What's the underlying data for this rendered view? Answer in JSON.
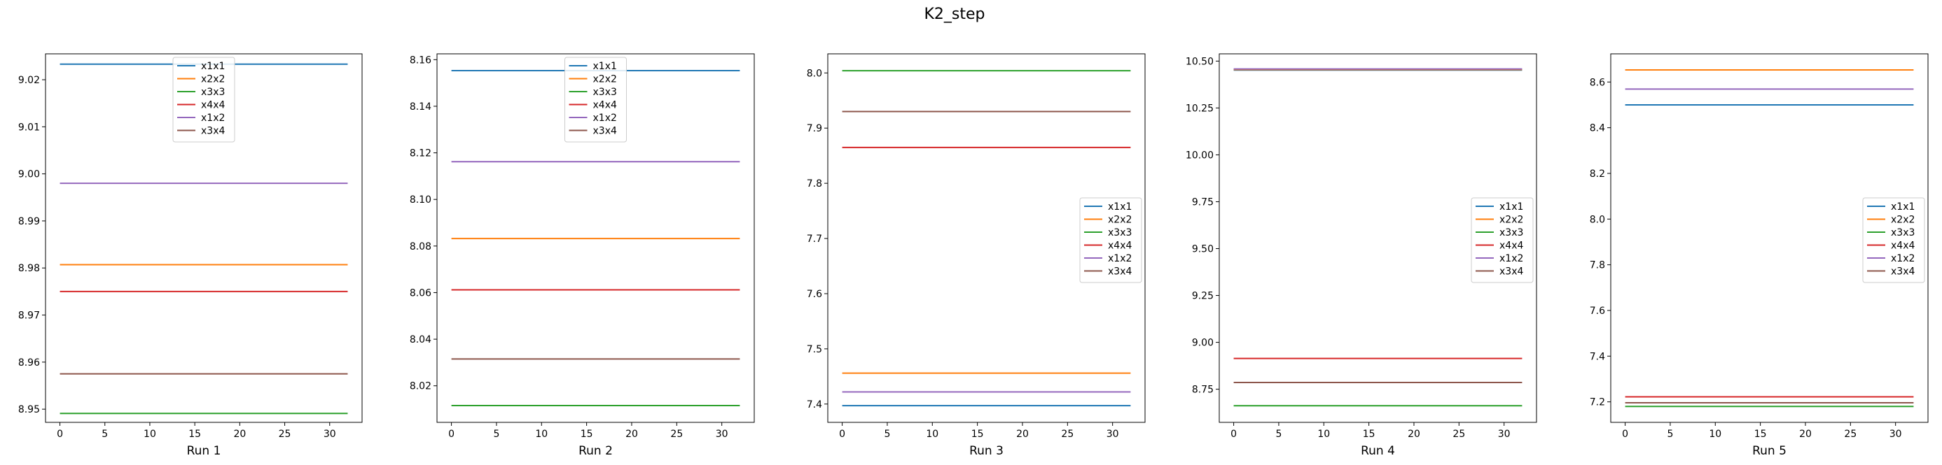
{
  "figure": {
    "suptitle": "K2_step"
  },
  "colors": {
    "x1x1": "#1f77b4",
    "x2x2": "#ff7f0e",
    "x3x3": "#2ca02c",
    "x4x4": "#d62728",
    "x1x2": "#9467bd",
    "x3x4": "#8c564b"
  },
  "chart_data": [
    {
      "type": "line",
      "xlabel": "Run 1",
      "legend": "upper center",
      "x": [
        0,
        32
      ],
      "xlim": [
        -1.6,
        33.6
      ],
      "ylim": [
        8.9472,
        9.0255
      ],
      "xticks": [
        0,
        5,
        10,
        15,
        20,
        25,
        30
      ],
      "yticks": [
        8.95,
        8.96,
        8.97,
        8.98,
        8.99,
        9.0,
        9.01,
        9.02
      ],
      "yfmt": 2,
      "series": [
        {
          "name": "x1x1",
          "value": 9.0233
        },
        {
          "name": "x2x2",
          "value": 8.9807
        },
        {
          "name": "x3x3",
          "value": 8.9491
        },
        {
          "name": "x4x4",
          "value": 8.975
        },
        {
          "name": "x1x2",
          "value": 8.998
        },
        {
          "name": "x3x4",
          "value": 8.9575
        }
      ]
    },
    {
      "type": "line",
      "xlabel": "Run 2",
      "legend": "upper center",
      "x": [
        0,
        32
      ],
      "xlim": [
        -1.6,
        33.6
      ],
      "ylim": [
        8.0043,
        8.1625
      ],
      "xticks": [
        0,
        5,
        10,
        15,
        20,
        25,
        30
      ],
      "yticks": [
        8.02,
        8.04,
        8.06,
        8.08,
        8.1,
        8.12,
        8.14,
        8.16
      ],
      "yfmt": 2,
      "series": [
        {
          "name": "x1x1",
          "value": 8.1553
        },
        {
          "name": "x2x2",
          "value": 8.0832
        },
        {
          "name": "x3x3",
          "value": 8.0115
        },
        {
          "name": "x4x4",
          "value": 8.0612
        },
        {
          "name": "x1x2",
          "value": 8.1162
        },
        {
          "name": "x3x4",
          "value": 8.0315
        }
      ]
    },
    {
      "type": "line",
      "xlabel": "Run 3",
      "legend": "center right",
      "x": [
        0,
        32
      ],
      "xlim": [
        -1.6,
        33.6
      ],
      "ylim": [
        7.3668,
        8.0346
      ],
      "xticks": [
        0,
        5,
        10,
        15,
        20,
        25,
        30
      ],
      "yticks": [
        7.4,
        7.5,
        7.6,
        7.7,
        7.8,
        7.9,
        8.0
      ],
      "yfmt": 1,
      "series": [
        {
          "name": "x1x1",
          "value": 7.397
        },
        {
          "name": "x2x2",
          "value": 7.456
        },
        {
          "name": "x3x3",
          "value": 8.004
        },
        {
          "name": "x4x4",
          "value": 7.865
        },
        {
          "name": "x1x2",
          "value": 7.422
        },
        {
          "name": "x3x4",
          "value": 7.93
        }
      ]
    },
    {
      "type": "line",
      "xlabel": "Run 4",
      "legend": "center right",
      "x": [
        0,
        32
      ],
      "xlim": [
        -1.6,
        33.6
      ],
      "ylim": [
        8.5733,
        10.5387
      ],
      "xticks": [
        0,
        5,
        10,
        15,
        20,
        25,
        30
      ],
      "yticks": [
        8.75,
        9.0,
        9.25,
        9.5,
        9.75,
        10.0,
        10.25,
        10.5
      ],
      "yfmt": 2,
      "series": [
        {
          "name": "x1x1",
          "value": 10.452
        },
        {
          "name": "x2x2",
          "value": 10.455
        },
        {
          "name": "x3x3",
          "value": 8.662
        },
        {
          "name": "x4x4",
          "value": 8.914
        },
        {
          "name": "x1x2",
          "value": 10.458
        },
        {
          "name": "x3x4",
          "value": 8.786
        }
      ]
    },
    {
      "type": "line",
      "xlabel": "Run 5",
      "legend": "center right",
      "x": [
        0,
        32
      ],
      "xlim": [
        -1.6,
        33.6
      ],
      "ylim": [
        7.1102,
        8.7233
      ],
      "xticks": [
        0,
        5,
        10,
        15,
        20,
        25,
        30
      ],
      "yticks": [
        7.2,
        7.4,
        7.6,
        7.8,
        8.0,
        8.2,
        8.4,
        8.6
      ],
      "yfmt": 1,
      "series": [
        {
          "name": "x1x1",
          "value": 8.5
        },
        {
          "name": "x2x2",
          "value": 8.653
        },
        {
          "name": "x3x3",
          "value": 7.18
        },
        {
          "name": "x4x4",
          "value": 7.222
        },
        {
          "name": "x1x2",
          "value": 8.569
        },
        {
          "name": "x3x4",
          "value": 7.196
        }
      ]
    }
  ]
}
